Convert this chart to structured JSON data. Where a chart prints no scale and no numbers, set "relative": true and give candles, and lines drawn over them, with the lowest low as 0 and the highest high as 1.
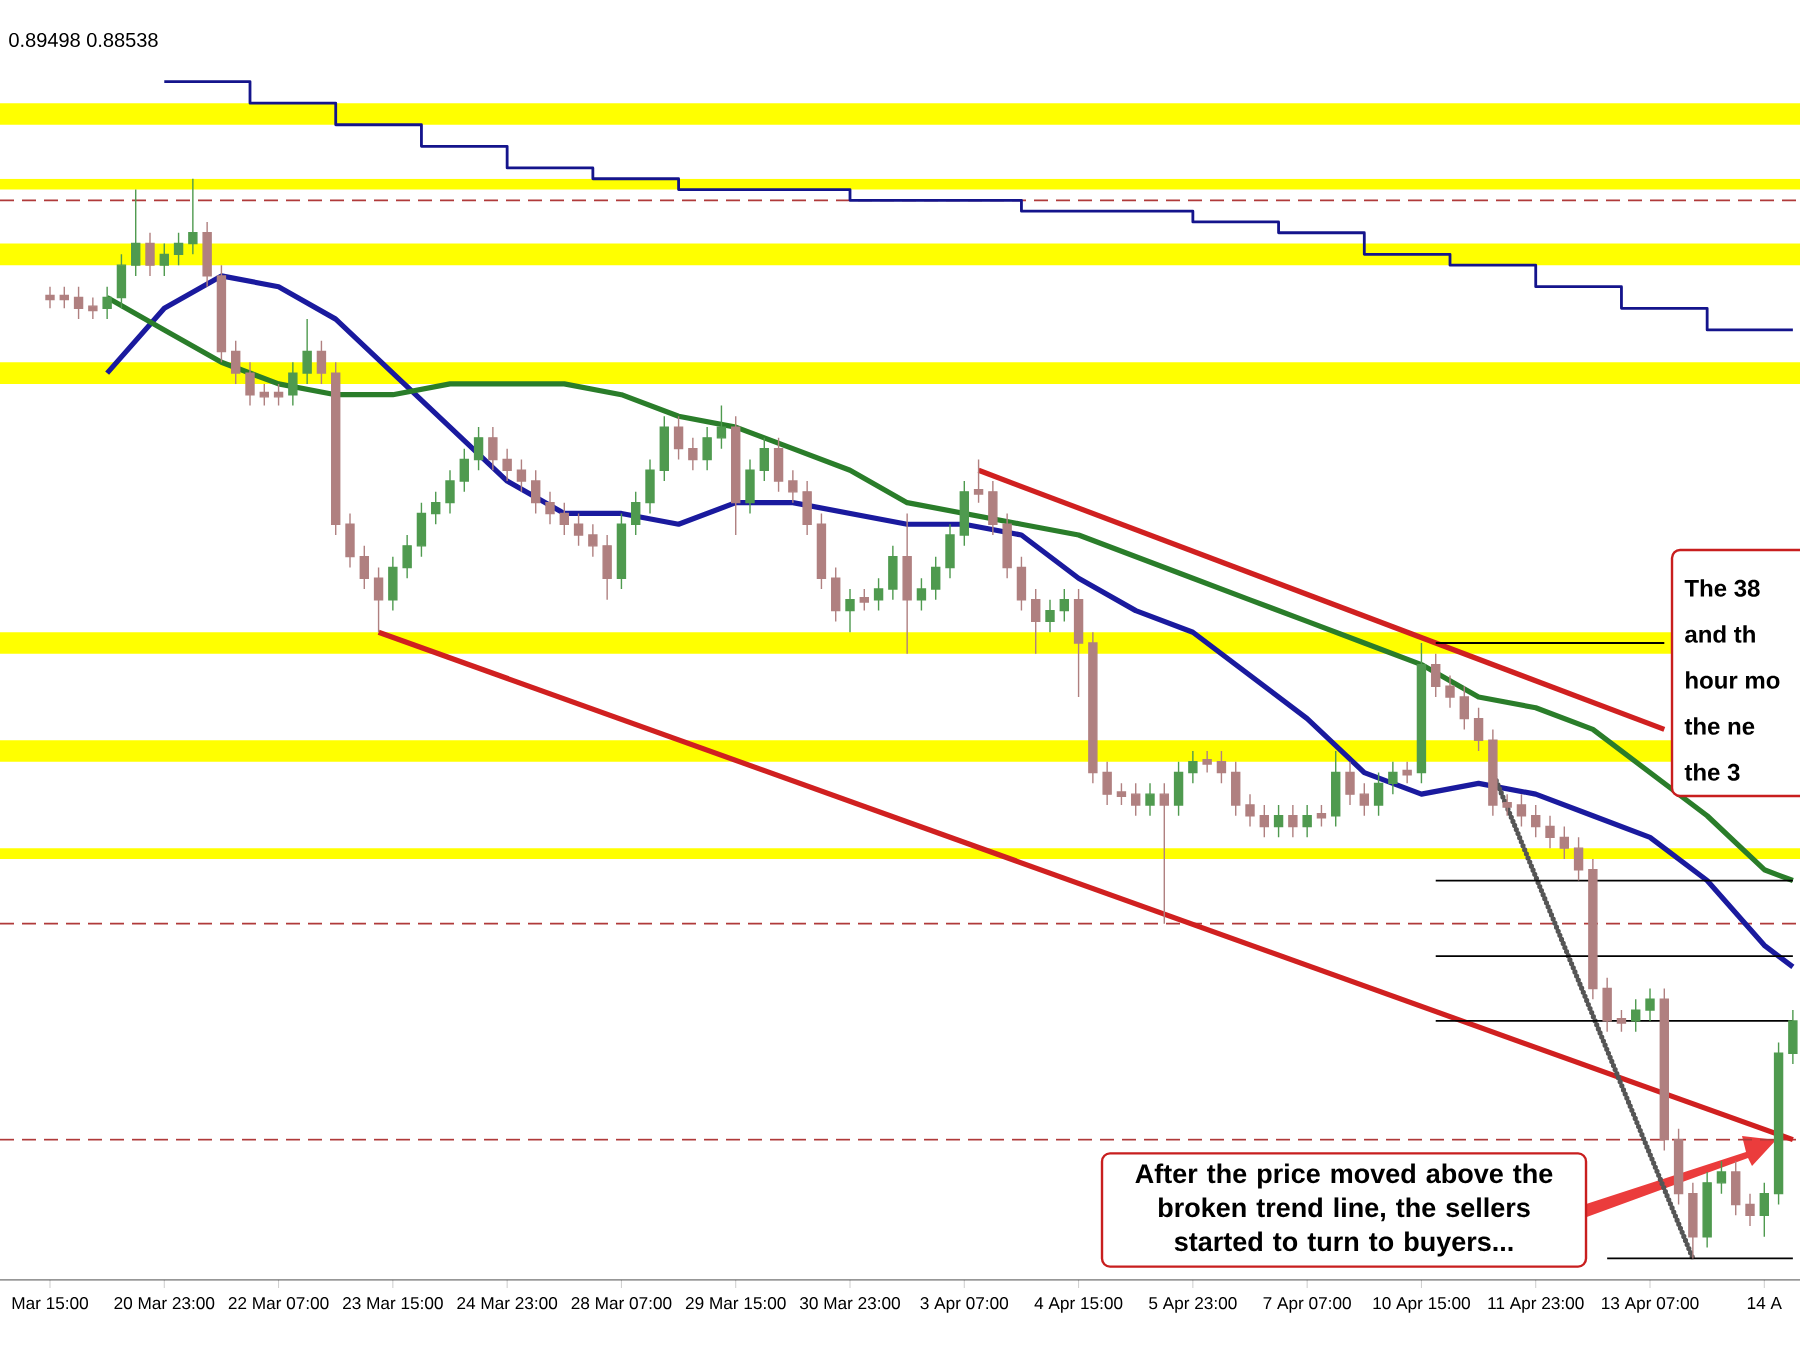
{
  "chart_data": {
    "type": "candlestick",
    "relative": true,
    "categories": [
      "Mar 15:00",
      null,
      null,
      null,
      null,
      null,
      null,
      null,
      "20 Mar 23:00",
      null,
      null,
      null,
      null,
      null,
      null,
      null,
      "22 Mar 07:00",
      null,
      null,
      null,
      null,
      null,
      null,
      null,
      "23 Mar 15:00",
      null,
      null,
      null,
      null,
      null,
      null,
      null,
      "24 Mar 23:00",
      null,
      null,
      null,
      null,
      null,
      null,
      null,
      "28 Mar 07:00",
      null,
      null,
      null,
      null,
      null,
      null,
      null,
      "29 Mar 15:00",
      null,
      null,
      null,
      null,
      null,
      null,
      null,
      "30 Mar 23:00",
      null,
      null,
      null,
      null,
      null,
      null,
      null,
      "3 Apr 07:00",
      null,
      null,
      null,
      null,
      null,
      null,
      null,
      "4 Apr 15:00",
      null,
      null,
      null,
      null,
      null,
      null,
      null,
      "5 Apr 23:00",
      null,
      null,
      null,
      null,
      null,
      null,
      null,
      "7 Apr 07:00",
      null,
      null,
      null,
      null,
      null,
      null,
      null,
      "10 Apr 15:00",
      null,
      null,
      null,
      null,
      null,
      null,
      null,
      "11 Apr 23:00",
      null,
      null,
      null,
      null,
      null,
      null,
      null,
      "13 Apr 07:00",
      null,
      null,
      null,
      null,
      null,
      null,
      null,
      "14 A",
      null,
      null
    ],
    "ohlc": [
      [
        0.89,
        0.9,
        0.88,
        0.89
      ],
      [
        0.89,
        0.9,
        0.88,
        0.89
      ],
      [
        0.89,
        0.9,
        0.87,
        0.88
      ],
      [
        0.88,
        0.89,
        0.87,
        0.88
      ],
      [
        0.88,
        0.9,
        0.87,
        0.89
      ],
      [
        0.89,
        0.93,
        0.88,
        0.92
      ],
      [
        0.92,
        0.99,
        0.91,
        0.94
      ],
      [
        0.94,
        0.95,
        0.91,
        0.92
      ],
      [
        0.92,
        0.94,
        0.91,
        0.93
      ],
      [
        0.93,
        0.95,
        0.92,
        0.94
      ],
      [
        0.94,
        1.0,
        0.93,
        0.95
      ],
      [
        0.95,
        0.96,
        0.9,
        0.91
      ],
      [
        0.91,
        0.92,
        0.83,
        0.84
      ],
      [
        0.84,
        0.85,
        0.81,
        0.82
      ],
      [
        0.82,
        0.83,
        0.79,
        0.8
      ],
      [
        0.8,
        0.81,
        0.79,
        0.8
      ],
      [
        0.8,
        0.81,
        0.79,
        0.8
      ],
      [
        0.8,
        0.83,
        0.79,
        0.82
      ],
      [
        0.82,
        0.87,
        0.81,
        0.84
      ],
      [
        0.84,
        0.85,
        0.81,
        0.82
      ],
      [
        0.82,
        0.83,
        0.67,
        0.68
      ],
      [
        0.68,
        0.69,
        0.64,
        0.65
      ],
      [
        0.65,
        0.66,
        0.62,
        0.63
      ],
      [
        0.63,
        0.64,
        0.58,
        0.61
      ],
      [
        0.61,
        0.65,
        0.6,
        0.64
      ],
      [
        0.64,
        0.67,
        0.63,
        0.66
      ],
      [
        0.66,
        0.7,
        0.65,
        0.69
      ],
      [
        0.69,
        0.71,
        0.68,
        0.7
      ],
      [
        0.7,
        0.73,
        0.69,
        0.72
      ],
      [
        0.72,
        0.75,
        0.71,
        0.74
      ],
      [
        0.74,
        0.77,
        0.73,
        0.76
      ],
      [
        0.76,
        0.77,
        0.73,
        0.74
      ],
      [
        0.74,
        0.75,
        0.72,
        0.73
      ],
      [
        0.73,
        0.74,
        0.71,
        0.72
      ],
      [
        0.72,
        0.73,
        0.69,
        0.7
      ],
      [
        0.7,
        0.71,
        0.68,
        0.69
      ],
      [
        0.69,
        0.7,
        0.67,
        0.68
      ],
      [
        0.68,
        0.69,
        0.66,
        0.67
      ],
      [
        0.67,
        0.68,
        0.65,
        0.66
      ],
      [
        0.66,
        0.67,
        0.61,
        0.63
      ],
      [
        0.63,
        0.69,
        0.62,
        0.68
      ],
      [
        0.68,
        0.71,
        0.67,
        0.7
      ],
      [
        0.7,
        0.74,
        0.69,
        0.73
      ],
      [
        0.73,
        0.78,
        0.72,
        0.77
      ],
      [
        0.77,
        0.78,
        0.74,
        0.75
      ],
      [
        0.75,
        0.76,
        0.73,
        0.74
      ],
      [
        0.74,
        0.77,
        0.73,
        0.76
      ],
      [
        0.76,
        0.79,
        0.75,
        0.77
      ],
      [
        0.77,
        0.78,
        0.67,
        0.7
      ],
      [
        0.7,
        0.74,
        0.69,
        0.73
      ],
      [
        0.73,
        0.76,
        0.72,
        0.75
      ],
      [
        0.75,
        0.76,
        0.71,
        0.72
      ],
      [
        0.72,
        0.73,
        0.7,
        0.71
      ],
      [
        0.71,
        0.72,
        0.67,
        0.68
      ],
      [
        0.68,
        0.69,
        0.62,
        0.63
      ],
      [
        0.63,
        0.64,
        0.59,
        0.6
      ],
      [
        0.6,
        0.62,
        0.58,
        0.61
      ],
      [
        0.61,
        0.62,
        0.6,
        0.61
      ],
      [
        0.61,
        0.63,
        0.6,
        0.62
      ],
      [
        0.62,
        0.66,
        0.61,
        0.65
      ],
      [
        0.65,
        0.69,
        0.56,
        0.61
      ],
      [
        0.61,
        0.63,
        0.6,
        0.62
      ],
      [
        0.62,
        0.65,
        0.61,
        0.64
      ],
      [
        0.64,
        0.68,
        0.63,
        0.67
      ],
      [
        0.67,
        0.72,
        0.66,
        0.71
      ],
      [
        0.71,
        0.74,
        0.7,
        0.71
      ],
      [
        0.71,
        0.72,
        0.67,
        0.68
      ],
      [
        0.68,
        0.69,
        0.63,
        0.64
      ],
      [
        0.64,
        0.65,
        0.6,
        0.61
      ],
      [
        0.61,
        0.62,
        0.56,
        0.59
      ],
      [
        0.59,
        0.61,
        0.58,
        0.6
      ],
      [
        0.6,
        0.62,
        0.59,
        0.61
      ],
      [
        0.61,
        0.62,
        0.52,
        0.57
      ],
      [
        0.57,
        0.58,
        0.44,
        0.45
      ],
      [
        0.45,
        0.46,
        0.42,
        0.43
      ],
      [
        0.43,
        0.44,
        0.42,
        0.43
      ],
      [
        0.43,
        0.44,
        0.41,
        0.42
      ],
      [
        0.42,
        0.44,
        0.41,
        0.43
      ],
      [
        0.43,
        0.44,
        0.31,
        0.42
      ],
      [
        0.42,
        0.46,
        0.41,
        0.45
      ],
      [
        0.45,
        0.47,
        0.44,
        0.46
      ],
      [
        0.46,
        0.47,
        0.45,
        0.46
      ],
      [
        0.46,
        0.47,
        0.44,
        0.45
      ],
      [
        0.45,
        0.46,
        0.41,
        0.42
      ],
      [
        0.42,
        0.43,
        0.4,
        0.41
      ],
      [
        0.41,
        0.42,
        0.39,
        0.4
      ],
      [
        0.4,
        0.42,
        0.39,
        0.41
      ],
      [
        0.41,
        0.42,
        0.39,
        0.4
      ],
      [
        0.4,
        0.42,
        0.39,
        0.41
      ],
      [
        0.41,
        0.42,
        0.4,
        0.41
      ],
      [
        0.41,
        0.47,
        0.4,
        0.45
      ],
      [
        0.45,
        0.46,
        0.42,
        0.43
      ],
      [
        0.43,
        0.44,
        0.41,
        0.42
      ],
      [
        0.42,
        0.45,
        0.41,
        0.44
      ],
      [
        0.44,
        0.46,
        0.43,
        0.45
      ],
      [
        0.45,
        0.46,
        0.44,
        0.45
      ],
      [
        0.45,
        0.57,
        0.44,
        0.55
      ],
      [
        0.55,
        0.56,
        0.52,
        0.53
      ],
      [
        0.53,
        0.54,
        0.51,
        0.52
      ],
      [
        0.52,
        0.53,
        0.49,
        0.5
      ],
      [
        0.5,
        0.51,
        0.47,
        0.48
      ],
      [
        0.48,
        0.49,
        0.41,
        0.42
      ],
      [
        0.42,
        0.43,
        0.41,
        0.42
      ],
      [
        0.42,
        0.43,
        0.4,
        0.41
      ],
      [
        0.41,
        0.42,
        0.39,
        0.4
      ],
      [
        0.4,
        0.41,
        0.38,
        0.39
      ],
      [
        0.39,
        0.4,
        0.37,
        0.38
      ],
      [
        0.38,
        0.39,
        0.35,
        0.36
      ],
      [
        0.36,
        0.37,
        0.24,
        0.25
      ],
      [
        0.25,
        0.26,
        0.21,
        0.22
      ],
      [
        0.22,
        0.23,
        0.21,
        0.22
      ],
      [
        0.22,
        0.24,
        0.21,
        0.23
      ],
      [
        0.23,
        0.25,
        0.22,
        0.24
      ],
      [
        0.24,
        0.25,
        0.1,
        0.11
      ],
      [
        0.11,
        0.12,
        0.05,
        0.06
      ],
      [
        0.06,
        0.07,
        0.0,
        0.02
      ],
      [
        0.02,
        0.08,
        0.01,
        0.07
      ],
      [
        0.07,
        0.09,
        0.06,
        0.08
      ],
      [
        0.08,
        0.09,
        0.04,
        0.05
      ],
      [
        0.05,
        0.06,
        0.03,
        0.04
      ],
      [
        0.04,
        0.07,
        0.02,
        0.06
      ],
      [
        0.06,
        0.2,
        0.05,
        0.19
      ],
      [
        0.19,
        0.23,
        0.18,
        0.22
      ]
    ],
    "colors": [
      "#b08080",
      "#b08080",
      "#b08080",
      "#b08080",
      "#4f9a4f",
      "#4f9a4f",
      "#4f9a4f",
      "#b08080",
      "#4f9a4f",
      "#4f9a4f",
      "#4f9a4f",
      "#b08080",
      "#b08080",
      "#b08080",
      "#b08080",
      "#b08080",
      "#b08080",
      "#4f9a4f",
      "#4f9a4f",
      "#b08080",
      "#b08080",
      "#b08080",
      "#b08080",
      "#b08080",
      "#4f9a4f",
      "#4f9a4f",
      "#4f9a4f",
      "#4f9a4f",
      "#4f9a4f",
      "#4f9a4f",
      "#4f9a4f",
      "#b08080",
      "#b08080",
      "#b08080",
      "#b08080",
      "#b08080",
      "#b08080",
      "#b08080",
      "#b08080",
      "#b08080",
      "#4f9a4f",
      "#4f9a4f",
      "#4f9a4f",
      "#4f9a4f",
      "#b08080",
      "#b08080",
      "#4f9a4f",
      "#4f9a4f",
      "#b08080",
      "#4f9a4f",
      "#4f9a4f",
      "#b08080",
      "#b08080",
      "#b08080",
      "#b08080",
      "#b08080",
      "#4f9a4f",
      "#b08080",
      "#4f9a4f",
      "#4f9a4f",
      "#b08080",
      "#4f9a4f",
      "#4f9a4f",
      "#4f9a4f",
      "#4f9a4f",
      "#b08080",
      "#b08080",
      "#b08080",
      "#b08080",
      "#b08080",
      "#4f9a4f",
      "#4f9a4f",
      "#b08080",
      "#b08080",
      "#b08080",
      "#b08080",
      "#b08080",
      "#4f9a4f",
      "#b08080",
      "#4f9a4f",
      "#4f9a4f",
      "#b08080",
      "#b08080",
      "#b08080",
      "#b08080",
      "#b08080",
      "#4f9a4f",
      "#b08080",
      "#4f9a4f",
      "#b08080",
      "#4f9a4f",
      "#b08080",
      "#b08080",
      "#4f9a4f",
      "#4f9a4f",
      "#b08080",
      "#4f9a4f",
      "#b08080",
      "#b08080",
      "#b08080",
      "#b08080",
      "#b08080",
      "#b08080",
      "#b08080",
      "#b08080",
      "#b08080",
      "#b08080",
      "#b08080",
      "#b08080",
      "#b08080",
      "#b08080",
      "#4f9a4f",
      "#4f9a4f",
      "#b08080",
      "#b08080",
      "#b08080",
      "#4f9a4f",
      "#4f9a4f",
      "#b08080",
      "#b08080",
      "#4f9a4f",
      "#4f9a4f",
      "#4f9a4f"
    ],
    "series": [
      {
        "type": "line",
        "color": "#1a1a9e",
        "values": [
          null,
          null,
          null,
          null,
          0.82,
          null,
          null,
          null,
          0.88,
          null,
          null,
          null,
          0.91,
          null,
          null,
          null,
          0.9,
          null,
          null,
          null,
          0.87,
          null,
          null,
          null,
          0.82,
          null,
          null,
          null,
          0.77,
          null,
          null,
          null,
          0.72,
          null,
          null,
          null,
          0.69,
          null,
          null,
          null,
          0.69,
          null,
          null,
          null,
          0.68,
          null,
          null,
          null,
          0.7,
          null,
          null,
          null,
          0.7,
          null,
          null,
          null,
          0.69,
          null,
          null,
          null,
          0.68,
          null,
          null,
          null,
          0.68,
          null,
          null,
          null,
          0.67,
          null,
          null,
          null,
          0.63,
          null,
          null,
          null,
          0.6,
          null,
          null,
          null,
          0.58,
          null,
          null,
          null,
          0.54,
          null,
          null,
          null,
          0.5,
          null,
          null,
          null,
          0.45,
          null,
          null,
          null,
          0.43,
          null,
          null,
          null,
          0.44,
          null,
          null,
          null,
          0.43,
          null,
          null,
          null,
          0.41,
          null,
          null,
          null,
          0.39,
          null,
          null,
          null,
          0.35,
          null,
          null,
          null,
          0.29,
          null,
          0.27
        ]
      },
      {
        "type": "line",
        "color": "#2a7d2a",
        "values": [
          null,
          null,
          null,
          null,
          0.89,
          null,
          null,
          null,
          0.86,
          null,
          null,
          null,
          0.83,
          null,
          null,
          null,
          0.81,
          null,
          null,
          null,
          0.8,
          null,
          null,
          null,
          0.8,
          null,
          null,
          null,
          0.81,
          null,
          null,
          null,
          0.81,
          null,
          null,
          null,
          0.81,
          null,
          null,
          null,
          0.8,
          null,
          null,
          null,
          0.78,
          null,
          null,
          null,
          0.77,
          null,
          null,
          null,
          0.75,
          null,
          null,
          null,
          0.73,
          null,
          null,
          null,
          0.7,
          null,
          null,
          null,
          0.69,
          null,
          null,
          null,
          0.68,
          null,
          null,
          null,
          0.67,
          null,
          null,
          null,
          0.65,
          null,
          null,
          null,
          0.63,
          null,
          null,
          null,
          0.61,
          null,
          null,
          null,
          0.59,
          null,
          null,
          null,
          0.57,
          null,
          null,
          null,
          0.55,
          null,
          null,
          null,
          0.52,
          null,
          null,
          null,
          0.51,
          null,
          null,
          null,
          0.49,
          null,
          null,
          null,
          0.45,
          null,
          null,
          null,
          0.41,
          null,
          null,
          null,
          0.36,
          null,
          0.35
        ]
      },
      {
        "type": "step",
        "color": "#14148c",
        "values": [
          null,
          null,
          null,
          null,
          null,
          null,
          null,
          null,
          1.09,
          null,
          null,
          null,
          null,
          null,
          1.07,
          null,
          null,
          null,
          null,
          null,
          1.05,
          null,
          null,
          null,
          null,
          null,
          1.03,
          null,
          null,
          null,
          null,
          null,
          1.01,
          null,
          null,
          null,
          null,
          null,
          1.0,
          null,
          null,
          null,
          null,
          null,
          0.99,
          null,
          null,
          null,
          null,
          null,
          0.99,
          null,
          null,
          null,
          null,
          null,
          0.98,
          null,
          null,
          null,
          null,
          null,
          0.98,
          null,
          null,
          null,
          null,
          null,
          0.97,
          null,
          null,
          null,
          null,
          null,
          0.97,
          null,
          null,
          null,
          null,
          null,
          0.96,
          null,
          null,
          null,
          null,
          null,
          0.95,
          null,
          null,
          null,
          null,
          null,
          0.93,
          null,
          null,
          null,
          null,
          null,
          0.92,
          null,
          null,
          null,
          null,
          null,
          0.9,
          null,
          null,
          null,
          null,
          null,
          0.88,
          null,
          null,
          null,
          null,
          null,
          0.86,
          null,
          null,
          null,
          null,
          null,
          0.86
        ]
      },
      {
        "type": "line",
        "color": "#d02020",
        "values": [
          null,
          null,
          null,
          null,
          null,
          null,
          null,
          null,
          null,
          null,
          null,
          null,
          null,
          null,
          null,
          null,
          null,
          null,
          null,
          null,
          null,
          null,
          null,
          0.58,
          null,
          null,
          null,
          null,
          null,
          null,
          null,
          null,
          null,
          null,
          null,
          null,
          null,
          null,
          null,
          null,
          null,
          null,
          null,
          null,
          null,
          null,
          null,
          null,
          null,
          null,
          null,
          null,
          null,
          null,
          null,
          null,
          null,
          null,
          null,
          null,
          null,
          null,
          null,
          null,
          null,
          null,
          null,
          null,
          null,
          null,
          null,
          null,
          null,
          null,
          null,
          null,
          null,
          null,
          null,
          null,
          null,
          null,
          null,
          null,
          null,
          null,
          null,
          null,
          null,
          null,
          null,
          null,
          null,
          null,
          null,
          null,
          null,
          null,
          null,
          null,
          null,
          null,
          null,
          null,
          null,
          null,
          null,
          null,
          null,
          null,
          null,
          null,
          null,
          null,
          null,
          null,
          null,
          null,
          null,
          null,
          null,
          null,
          0.11
        ]
      },
      {
        "type": "line",
        "color": "#d02020",
        "values": [
          null,
          null,
          null,
          null,
          null,
          null,
          null,
          null,
          null,
          null,
          null,
          null,
          null,
          null,
          null,
          null,
          null,
          null,
          null,
          null,
          null,
          null,
          null,
          null,
          null,
          null,
          null,
          null,
          null,
          null,
          null,
          null,
          null,
          null,
          null,
          null,
          null,
          null,
          null,
          null,
          null,
          null,
          null,
          null,
          null,
          null,
          null,
          null,
          null,
          null,
          null,
          null,
          null,
          null,
          null,
          null,
          null,
          null,
          null,
          null,
          null,
          null,
          null,
          null,
          null,
          0.73,
          null,
          null,
          null,
          null,
          null,
          null,
          null,
          null,
          null,
          null,
          null,
          null,
          null,
          null,
          null,
          null,
          null,
          null,
          null,
          null,
          null,
          null,
          null,
          null,
          null,
          null,
          null,
          null,
          null,
          null,
          null,
          null,
          null,
          null,
          null,
          null,
          null,
          null,
          null,
          null,
          null,
          null,
          null,
          null,
          null,
          null,
          null,
          0.49,
          null,
          null,
          null,
          null,
          null,
          null,
          null,
          null,
          null
        ]
      },
      {
        "type": "line",
        "color": "#555555",
        "line_style": "dotted",
        "values": [
          null,
          null,
          null,
          null,
          null,
          null,
          null,
          null,
          null,
          null,
          null,
          null,
          null,
          null,
          null,
          null,
          null,
          null,
          null,
          null,
          null,
          null,
          null,
          null,
          null,
          null,
          null,
          null,
          null,
          null,
          null,
          null,
          null,
          null,
          null,
          null,
          null,
          null,
          null,
          null,
          null,
          null,
          null,
          null,
          null,
          null,
          null,
          null,
          null,
          null,
          null,
          null,
          null,
          null,
          null,
          null,
          null,
          null,
          null,
          null,
          null,
          null,
          null,
          null,
          null,
          null,
          null,
          null,
          null,
          null,
          null,
          null,
          null,
          null,
          null,
          null,
          null,
          null,
          null,
          null,
          null,
          null,
          null,
          null,
          null,
          null,
          null,
          null,
          null,
          null,
          null,
          null,
          null,
          null,
          null,
          null,
          null,
          null,
          null,
          null,
          null,
          0.45,
          null,
          null,
          null,
          null,
          null,
          null,
          null,
          null,
          null,
          null,
          null,
          null,
          null,
          0.0,
          null,
          null,
          null,
          null,
          null,
          null,
          null
        ]
      },
      {
        "type": "line",
        "color": "#000000",
        "values": [
          null,
          null,
          null,
          null,
          null,
          null,
          null,
          null,
          null,
          null,
          null,
          null,
          null,
          null,
          null,
          null,
          null,
          null,
          null,
          null,
          null,
          null,
          null,
          null,
          null,
          null,
          null,
          null,
          null,
          null,
          null,
          null,
          null,
          null,
          null,
          null,
          null,
          null,
          null,
          null,
          null,
          null,
          null,
          null,
          null,
          null,
          null,
          null,
          null,
          null,
          null,
          null,
          null,
          null,
          null,
          null,
          null,
          null,
          null,
          null,
          null,
          null,
          null,
          null,
          null,
          null,
          null,
          null,
          null,
          null,
          null,
          null,
          null,
          null,
          null,
          null,
          null,
          null,
          null,
          null,
          null,
          null,
          null,
          null,
          null,
          null,
          null,
          null,
          null,
          null,
          null,
          null,
          null,
          null,
          null,
          null,
          null,
          0.57,
          null,
          null,
          null,
          null,
          null,
          null,
          null,
          null,
          null,
          null,
          null,
          null,
          null,
          null,
          null,
          0.57,
          null,
          null,
          null,
          null,
          null,
          null,
          null,
          null,
          null
        ]
      },
      {
        "type": "line",
        "color": "#000000",
        "values": [
          null,
          null,
          null,
          null,
          null,
          null,
          null,
          null,
          null,
          null,
          null,
          null,
          null,
          null,
          null,
          null,
          null,
          null,
          null,
          null,
          null,
          null,
          null,
          null,
          null,
          null,
          null,
          null,
          null,
          null,
          null,
          null,
          null,
          null,
          null,
          null,
          null,
          null,
          null,
          null,
          null,
          null,
          null,
          null,
          null,
          null,
          null,
          null,
          null,
          null,
          null,
          null,
          null,
          null,
          null,
          null,
          null,
          null,
          null,
          null,
          null,
          null,
          null,
          null,
          null,
          null,
          null,
          null,
          null,
          null,
          null,
          null,
          null,
          null,
          null,
          null,
          null,
          null,
          null,
          null,
          null,
          null,
          null,
          null,
          null,
          null,
          null,
          null,
          null,
          null,
          null,
          null,
          null,
          null,
          null,
          null,
          null,
          0.35,
          null,
          null,
          null,
          null,
          null,
          null,
          null,
          null,
          null,
          null,
          null,
          null,
          null,
          null,
          null,
          null,
          null,
          null,
          null,
          null,
          null,
          null,
          null,
          null,
          0.35
        ]
      },
      {
        "type": "line",
        "color": "#000000",
        "values": [
          null,
          null,
          null,
          null,
          null,
          null,
          null,
          null,
          null,
          null,
          null,
          null,
          null,
          null,
          null,
          null,
          null,
          null,
          null,
          null,
          null,
          null,
          null,
          null,
          null,
          null,
          null,
          null,
          null,
          null,
          null,
          null,
          null,
          null,
          null,
          null,
          null,
          null,
          null,
          null,
          null,
          null,
          null,
          null,
          null,
          null,
          null,
          null,
          null,
          null,
          null,
          null,
          null,
          null,
          null,
          null,
          null,
          null,
          null,
          null,
          null,
          null,
          null,
          null,
          null,
          null,
          null,
          null,
          null,
          null,
          null,
          null,
          null,
          null,
          null,
          null,
          null,
          null,
          null,
          null,
          null,
          null,
          null,
          null,
          null,
          null,
          null,
          null,
          null,
          null,
          null,
          null,
          null,
          null,
          null,
          null,
          null,
          0.28,
          null,
          null,
          null,
          null,
          null,
          null,
          null,
          null,
          null,
          null,
          null,
          null,
          null,
          null,
          null,
          null,
          null,
          null,
          null,
          null,
          null,
          null,
          null,
          null,
          0.28
        ]
      },
      {
        "type": "line",
        "color": "#000000",
        "values": [
          null,
          null,
          null,
          null,
          null,
          null,
          null,
          null,
          null,
          null,
          null,
          null,
          null,
          null,
          null,
          null,
          null,
          null,
          null,
          null,
          null,
          null,
          null,
          null,
          null,
          null,
          null,
          null,
          null,
          null,
          null,
          null,
          null,
          null,
          null,
          null,
          null,
          null,
          null,
          null,
          null,
          null,
          null,
          null,
          null,
          null,
          null,
          null,
          null,
          null,
          null,
          null,
          null,
          null,
          null,
          null,
          null,
          null,
          null,
          null,
          null,
          null,
          null,
          null,
          null,
          null,
          null,
          null,
          null,
          null,
          null,
          null,
          null,
          null,
          null,
          null,
          null,
          null,
          null,
          null,
          null,
          null,
          null,
          null,
          null,
          null,
          null,
          null,
          null,
          null,
          null,
          null,
          null,
          null,
          null,
          null,
          null,
          0.22,
          null,
          null,
          null,
          null,
          null,
          null,
          null,
          null,
          null,
          null,
          null,
          null,
          null,
          null,
          null,
          null,
          null,
          null,
          null,
          null,
          null,
          null,
          null,
          null,
          0.22
        ]
      },
      {
        "type": "line",
        "color": "#000000",
        "values": [
          null,
          null,
          null,
          null,
          null,
          null,
          null,
          null,
          null,
          null,
          null,
          null,
          null,
          null,
          null,
          null,
          null,
          null,
          null,
          null,
          null,
          null,
          null,
          null,
          null,
          null,
          null,
          null,
          null,
          null,
          null,
          null,
          null,
          null,
          null,
          null,
          null,
          null,
          null,
          null,
          null,
          null,
          null,
          null,
          null,
          null,
          null,
          null,
          null,
          null,
          null,
          null,
          null,
          null,
          null,
          null,
          null,
          null,
          null,
          null,
          null,
          null,
          null,
          null,
          null,
          null,
          null,
          null,
          null,
          null,
          null,
          null,
          null,
          null,
          null,
          null,
          null,
          null,
          null,
          null,
          null,
          null,
          null,
          null,
          null,
          null,
          null,
          null,
          null,
          null,
          null,
          null,
          null,
          null,
          null,
          null,
          null,
          null,
          null,
          null,
          null,
          null,
          null,
          null,
          null,
          null,
          null,
          null,
          null,
          0.0,
          null,
          null,
          null,
          null,
          null,
          null,
          null,
          null,
          null,
          null,
          null,
          null,
          0.0
        ]
      }
    ],
    "bands": [
      {
        "axis": "y",
        "from": 1.05,
        "to": 1.07,
        "color": "#ffff00"
      },
      {
        "axis": "y",
        "from": 0.99,
        "to": 1.0,
        "color": "#ffff00"
      },
      {
        "axis": "y",
        "from": 0.92,
        "to": 0.94,
        "color": "#ffff00"
      },
      {
        "axis": "y",
        "from": 0.81,
        "to": 0.83,
        "color": "#ffff00"
      },
      {
        "axis": "y",
        "from": 0.56,
        "to": 0.58,
        "color": "#ffff00"
      },
      {
        "axis": "y",
        "from": 0.46,
        "to": 0.48,
        "color": "#ffff00"
      },
      {
        "axis": "y",
        "from": 0.37,
        "to": 0.38,
        "color": "#ffff00"
      }
    ],
    "ref_lines": [
      {
        "axis": "y",
        "value": 0.98,
        "color": "#b03a3a",
        "line_style": "dashed"
      },
      {
        "axis": "y",
        "value": 0.31,
        "color": "#b03a3a",
        "line_style": "dashed"
      },
      {
        "axis": "y",
        "value": 0.11,
        "color": "#b03a3a",
        "line_style": "dashed"
      }
    ],
    "annotations": [
      "0.89498 0.88538",
      "After the price moved above the broken trend line, the sellers started to turn to buyers...",
      "The 38",
      "and th",
      "hour mo",
      "the ne",
      "the 3"
    ]
  }
}
